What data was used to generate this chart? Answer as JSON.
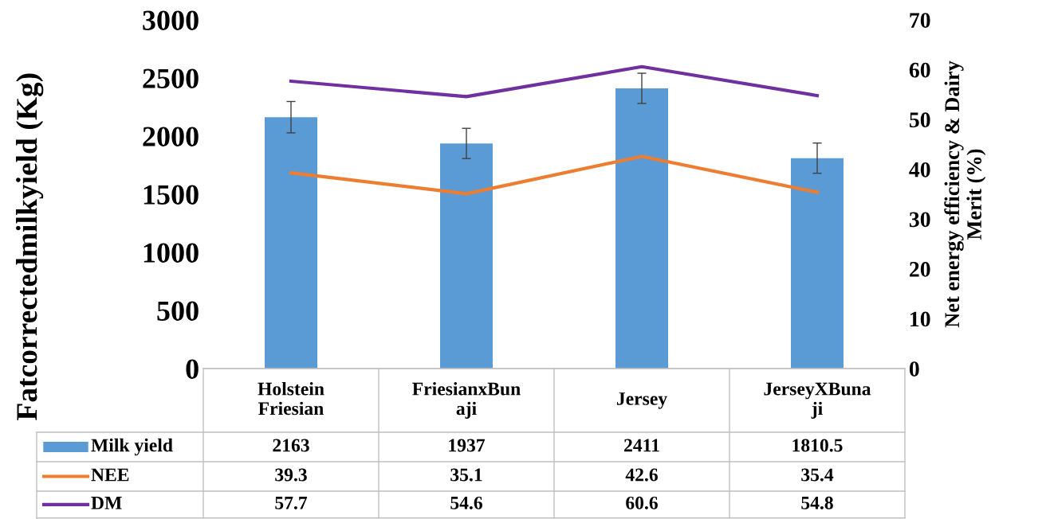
{
  "chart_data": {
    "type": "bar",
    "ylabel": "Fatcorrectedmilkyield (Kg)",
    "y2label": "Net energy efficiency & Dairy\nMerit (%)",
    "categories": [
      "Holstein\nFriesian",
      "FriesianxBun\naji",
      "Jersey",
      "JerseyXBuna\nji"
    ],
    "series": [
      {
        "name": "Milk yield",
        "type": "bar",
        "color": "#5b9bd5",
        "values": [
          2163,
          1937,
          2411,
          1810.5
        ],
        "errors": [
          135,
          130,
          130,
          130
        ]
      },
      {
        "name": "NEE",
        "type": "line",
        "axis": "y2",
        "color": "#ed7d31",
        "values": [
          39.3,
          35.1,
          42.6,
          35.4
        ]
      },
      {
        "name": "DM",
        "type": "line",
        "axis": "y2",
        "color": "#7030a0",
        "values": [
          57.7,
          54.6,
          60.6,
          54.8
        ]
      }
    ],
    "ylim": [
      0,
      3000
    ],
    "yticks": [
      0,
      500,
      1000,
      1500,
      2000,
      2500,
      3000
    ],
    "y2lim": [
      0,
      70
    ],
    "y2ticks": [
      0,
      10,
      20,
      30,
      40,
      50,
      60,
      70
    ],
    "data_labels": true,
    "legend": "bottom left",
    "grid": false,
    "marker": "none",
    "line_style": "solid"
  }
}
